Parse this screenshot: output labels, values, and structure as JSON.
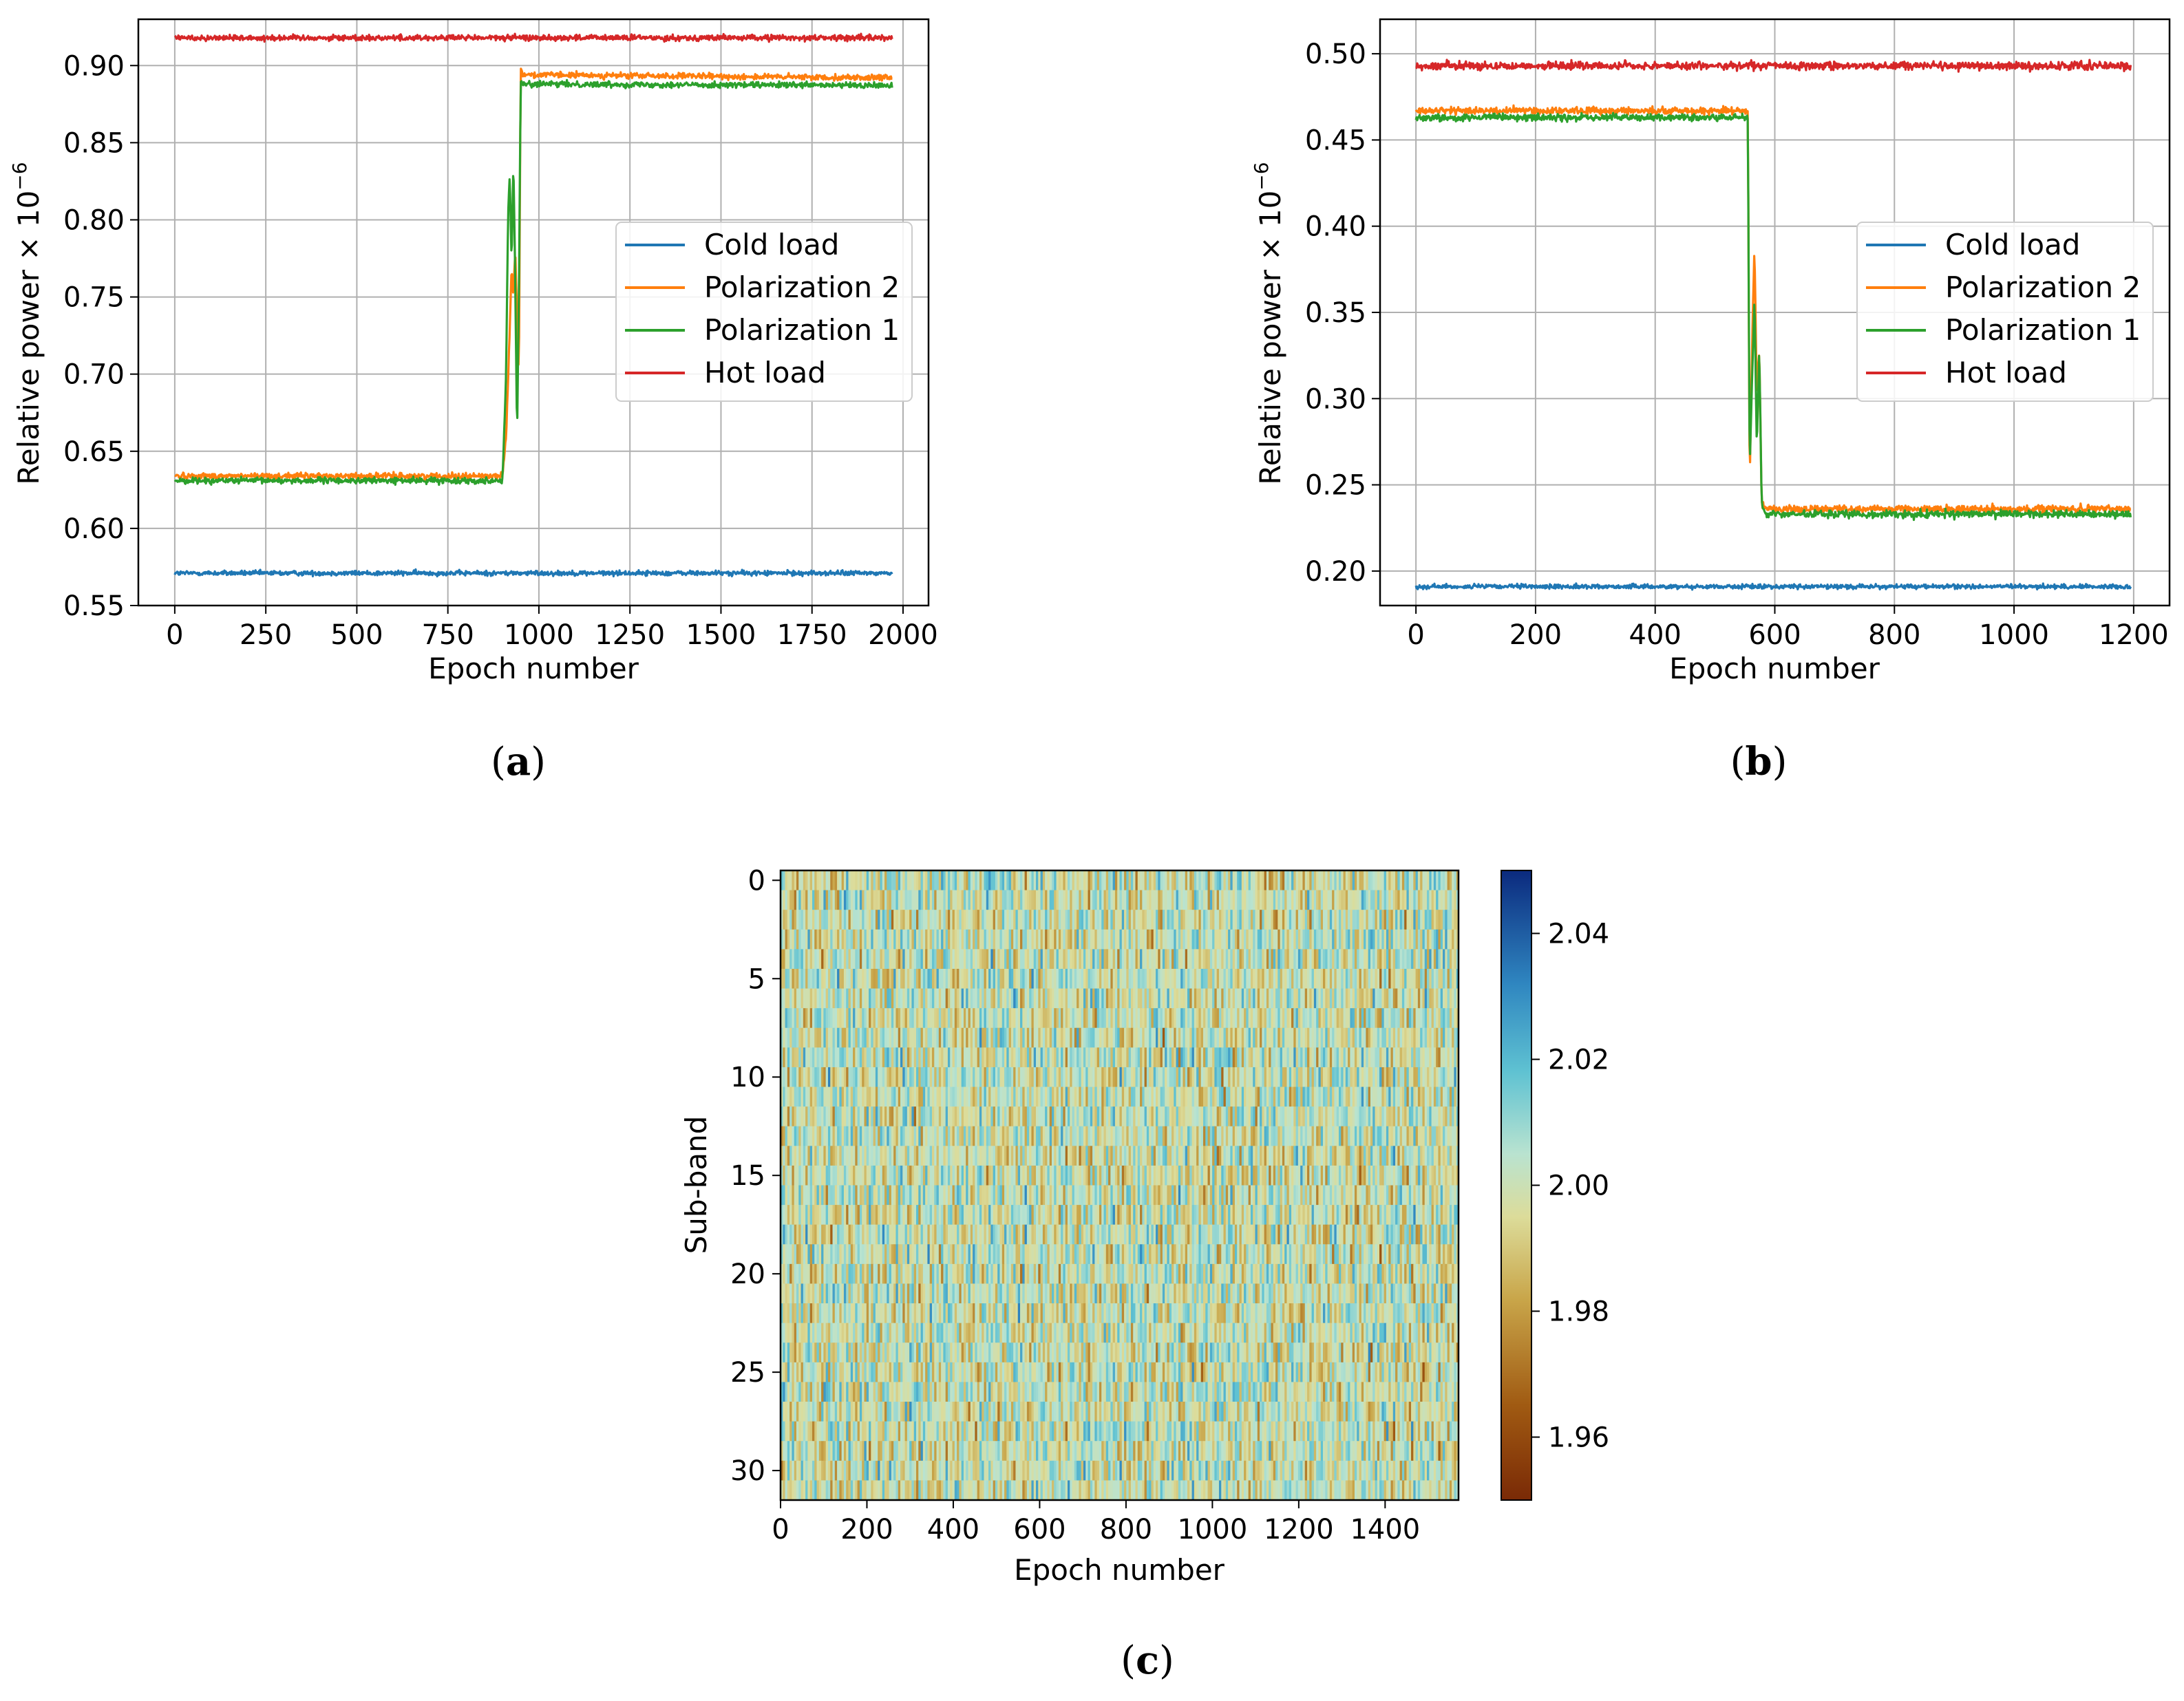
{
  "colors": {
    "cold": "#1f77b4",
    "pol2": "#ff7f0e",
    "pol1": "#2ca02c",
    "hot": "#d62728",
    "grid": "#b0b0b0"
  },
  "chart_data": [
    {
      "type": "line",
      "caption": "a",
      "xlabel": "Epoch number",
      "ylabel": "Relative power × 10",
      "ylabel_exp": "−6",
      "xlim": [
        -100,
        2070
      ],
      "ylim": [
        0.55,
        0.93
      ],
      "xticks": [
        0,
        250,
        500,
        750,
        1000,
        1250,
        1500,
        1750,
        2000
      ],
      "xtick_labels": [
        "0",
        "250",
        "500",
        "750",
        "1000",
        "1250",
        "1500",
        "1750",
        "2000"
      ],
      "yticks": [
        0.55,
        0.6,
        0.65,
        0.7,
        0.75,
        0.8,
        0.85,
        0.9
      ],
      "ytick_labels": [
        "0.55",
        "0.60",
        "0.65",
        "0.70",
        "0.75",
        "0.80",
        "0.85",
        "0.90"
      ],
      "grid": true,
      "legend_position": "center-right",
      "series": [
        {
          "name": "Cold load",
          "color": "#1f77b4",
          "x": [
            0,
            1970
          ],
          "y": [
            0.571,
            0.571
          ],
          "noise": 0.0015
        },
        {
          "name": "Polarization 2",
          "color": "#ff7f0e",
          "x": [
            0,
            900,
            910,
            920,
            925,
            930,
            935,
            940,
            945,
            950,
            955,
            960,
            1970
          ],
          "y": [
            0.634,
            0.634,
            0.66,
            0.73,
            0.77,
            0.75,
            0.78,
            0.74,
            0.7,
            0.9,
            0.895,
            0.894,
            0.892
          ],
          "noise": 0.0018
        },
        {
          "name": "Polarization 1",
          "color": "#2ca02c",
          "x": [
            0,
            900,
            910,
            915,
            920,
            925,
            930,
            935,
            940,
            945,
            950,
            955,
            1970
          ],
          "y": [
            0.631,
            0.631,
            0.7,
            0.8,
            0.83,
            0.77,
            0.84,
            0.76,
            0.66,
            0.75,
            0.89,
            0.888,
            0.887
          ],
          "noise": 0.0018
        },
        {
          "name": "Hot load",
          "color": "#d62728",
          "x": [
            0,
            1970
          ],
          "y": [
            0.918,
            0.918
          ],
          "noise": 0.0018
        }
      ]
    },
    {
      "type": "line",
      "caption": "b",
      "xlabel": "Epoch number",
      "ylabel": "Relative power × 10",
      "ylabel_exp": "−6",
      "xlim": [
        -60,
        1260
      ],
      "ylim": [
        0.18,
        0.52
      ],
      "xticks": [
        0,
        200,
        400,
        600,
        800,
        1000,
        1200
      ],
      "xtick_labels": [
        "0",
        "200",
        "400",
        "600",
        "800",
        "1000",
        "1200"
      ],
      "yticks": [
        0.2,
        0.25,
        0.3,
        0.35,
        0.4,
        0.45,
        0.5
      ],
      "ytick_labels": [
        "0.20",
        "0.25",
        "0.30",
        "0.35",
        "0.40",
        "0.45",
        "0.50"
      ],
      "grid": true,
      "legend_position": "center-right",
      "series": [
        {
          "name": "Cold load",
          "color": "#1f77b4",
          "x": [
            0,
            1195
          ],
          "y": [
            0.191,
            0.191
          ],
          "noise": 0.0012
        },
        {
          "name": "Polarization 2",
          "color": "#ff7f0e",
          "x": [
            0,
            555,
            558,
            562,
            566,
            570,
            574,
            578,
            582,
            586,
            1195
          ],
          "y": [
            0.467,
            0.467,
            0.25,
            0.33,
            0.39,
            0.3,
            0.33,
            0.24,
            0.237,
            0.236,
            0.236
          ],
          "noise": 0.002
        },
        {
          "name": "Polarization 1",
          "color": "#2ca02c",
          "x": [
            0,
            555,
            558,
            562,
            566,
            570,
            574,
            578,
            582,
            586,
            1195
          ],
          "y": [
            0.463,
            0.463,
            0.26,
            0.31,
            0.36,
            0.27,
            0.33,
            0.24,
            0.234,
            0.233,
            0.233
          ],
          "noise": 0.002
        },
        {
          "name": "Hot load",
          "color": "#d62728",
          "x": [
            0,
            1195
          ],
          "y": [
            0.493,
            0.493
          ],
          "noise": 0.0022
        }
      ]
    },
    {
      "type": "heatmap",
      "caption": "c",
      "xlabel": "Epoch number",
      "ylabel": "Sub-band",
      "xlim": [
        0,
        1570
      ],
      "ylim": [
        31.5,
        -0.5
      ],
      "rows": 32,
      "cols": 1570,
      "xticks": [
        0,
        200,
        400,
        600,
        800,
        1000,
        1200,
        1400
      ],
      "xtick_labels": [
        "0",
        "200",
        "400",
        "600",
        "800",
        "1000",
        "1200",
        "1400"
      ],
      "yticks": [
        0,
        5,
        10,
        15,
        20,
        25,
        30
      ],
      "ytick_labels": [
        "0",
        "5",
        "10",
        "15",
        "20",
        "25",
        "30"
      ],
      "colorbar": {
        "vmin": 1.95,
        "vmax": 2.05,
        "ticks": [
          1.96,
          1.98,
          2.0,
          2.02,
          2.04
        ],
        "tick_labels": [
          "1.96",
          "1.98",
          "2.00",
          "2.02",
          "2.04"
        ]
      },
      "value_mean": 2.0,
      "value_spread": 0.022
    }
  ]
}
